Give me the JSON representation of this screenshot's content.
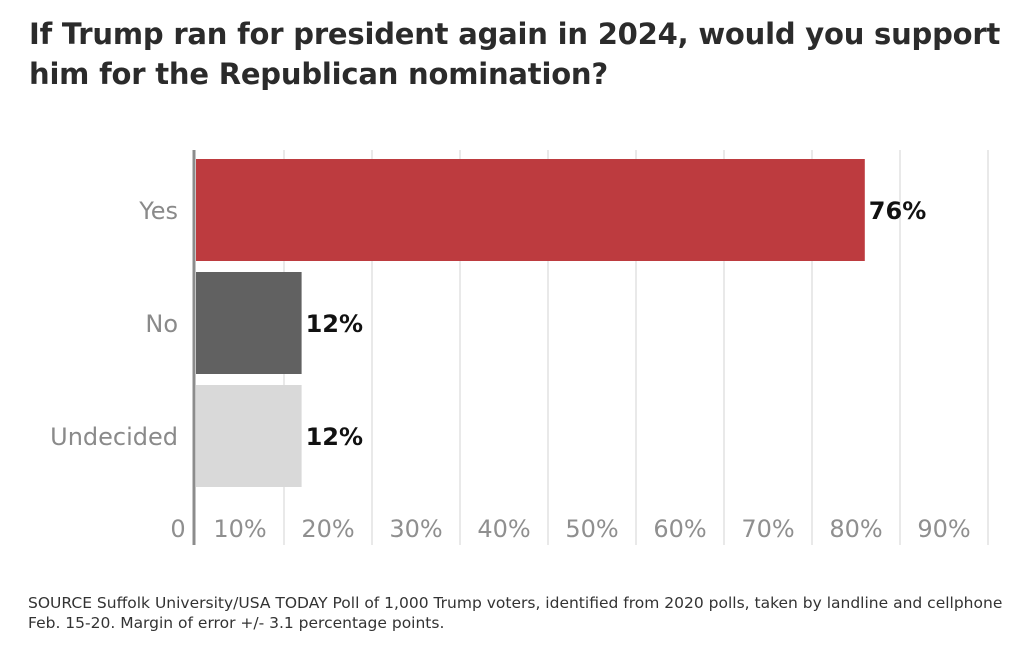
{
  "title": "If Trump ran for president again in 2024, would you support him for the Republican nomination?",
  "source": "SOURCE Suffolk University/USA TODAY Poll of 1,000 Trump voters, identified from 2020 polls, taken by landline and cellphone Feb. 15-20. Margin of error +/- 3.1 percentage points.",
  "chart_data": {
    "type": "bar",
    "orientation": "horizontal",
    "title": "If Trump ran for president again in 2024, would you support him for the Republican nomination?",
    "categories": [
      "Yes",
      "No",
      "Undecided"
    ],
    "values": [
      76,
      12,
      12
    ],
    "value_labels": [
      "76%",
      "12%",
      "12%"
    ],
    "colors": [
      "#bd3b3f",
      "#616161",
      "#d9d9d9"
    ],
    "xlim": [
      0,
      90
    ],
    "xticks": [
      0,
      10,
      20,
      30,
      40,
      50,
      60,
      70,
      80,
      90
    ],
    "xtick_labels": [
      "0",
      "10%",
      "20%",
      "30%",
      "40%",
      "50%",
      "60%",
      "70%",
      "80%",
      "90%"
    ],
    "grid": true,
    "xlabel": "",
    "ylabel": ""
  }
}
